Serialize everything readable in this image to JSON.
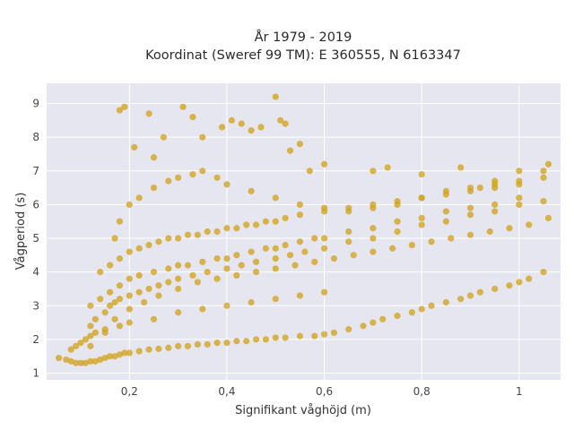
{
  "chart_data": {
    "type": "scatter",
    "title_lines": [
      "År 1979 - 2019",
      "Koordinat (Sweref 99 TM): E 360555, N 6163347"
    ],
    "xlabel": "Signifikant våghöjd (m)",
    "ylabel": "Vågperiod (s)",
    "xlim": [
      0.03,
      1.085
    ],
    "ylim": [
      0.8,
      9.6
    ],
    "x_ticks": [
      0.2,
      0.4,
      0.6,
      0.8,
      1.0
    ],
    "x_tick_labels": [
      "0,2",
      "0,4",
      "0,6",
      "0,8",
      "1"
    ],
    "y_ticks": [
      1,
      2,
      3,
      4,
      5,
      6,
      7,
      8,
      9
    ],
    "y_tick_labels": [
      "1",
      "2",
      "3",
      "4",
      "5",
      "6",
      "7",
      "8",
      "9"
    ],
    "grid": true,
    "plot_background": "#e5e6ef",
    "marker_color": "#d4a31e",
    "series": [
      {
        "x": [
          0.055,
          0.07,
          0.08,
          0.09,
          0.1,
          0.11,
          0.12,
          0.13,
          0.14,
          0.15,
          0.16,
          0.17,
          0.18,
          0.19,
          0.2,
          0.22,
          0.24,
          0.26,
          0.28,
          0.3,
          0.32,
          0.34,
          0.36,
          0.38,
          0.4,
          0.42,
          0.44,
          0.46,
          0.48,
          0.5,
          0.52,
          0.55,
          0.58,
          0.6,
          0.62,
          0.65,
          0.68,
          0.7,
          0.72,
          0.75,
          0.78,
          0.8,
          0.82,
          0.85,
          0.88,
          0.9,
          0.92,
          0.95,
          0.98,
          1.0,
          1.02,
          1.05,
          0.12,
          0.13,
          0.15,
          0.16,
          0.17,
          0.18,
          0.2,
          0.22,
          0.24,
          0.26,
          0.28,
          0.3,
          0.33,
          0.36,
          0.4,
          0.43,
          0.46,
          0.5,
          0.53,
          0.56,
          0.6,
          0.65,
          0.7,
          0.75,
          0.8,
          0.85,
          0.9,
          0.95,
          1.0,
          1.05,
          0.08,
          0.09,
          0.1,
          0.11,
          0.12,
          0.13,
          0.15,
          0.18,
          0.2,
          0.25,
          0.3,
          0.35,
          0.4,
          0.45,
          0.5,
          0.55,
          0.6,
          0.12,
          0.14,
          0.16,
          0.18,
          0.2,
          0.22,
          0.25,
          0.28,
          0.3,
          0.32,
          0.35,
          0.38,
          0.4,
          0.42,
          0.45,
          0.48,
          0.5,
          0.52,
          0.55,
          0.58,
          0.6,
          0.65,
          0.7,
          0.75,
          0.8,
          0.85,
          0.9,
          0.95,
          1.0,
          0.14,
          0.16,
          0.18,
          0.2,
          0.22,
          0.24,
          0.26,
          0.28,
          0.3,
          0.32,
          0.34,
          0.36,
          0.38,
          0.4,
          0.42,
          0.44,
          0.46,
          0.48,
          0.5,
          0.52,
          0.55,
          0.6,
          0.65,
          0.7,
          0.75,
          0.8,
          0.85,
          0.9,
          0.95,
          1.0,
          1.05,
          0.17,
          0.18,
          0.2,
          0.22,
          0.25,
          0.28,
          0.3,
          0.33,
          0.35,
          0.38,
          0.4,
          0.45,
          0.5,
          0.55,
          0.6,
          0.65,
          0.7,
          0.75,
          0.8,
          0.85,
          0.9,
          0.95,
          1.0,
          0.12,
          0.15,
          0.17,
          0.2,
          0.23,
          0.26,
          0.3,
          0.34,
          0.38,
          0.42,
          0.46,
          0.5,
          0.54,
          0.58,
          0.62,
          0.66,
          0.7,
          0.74,
          0.78,
          0.82,
          0.86,
          0.9,
          0.94,
          0.98,
          1.02,
          1.06,
          0.18,
          0.19,
          0.21,
          0.24,
          0.25,
          0.27,
          0.31,
          0.33,
          0.35,
          0.39,
          0.41,
          0.43,
          0.45,
          0.47,
          0.5,
          0.51,
          0.52,
          0.53,
          0.55,
          0.57,
          0.6,
          0.7,
          0.73,
          0.8,
          0.88,
          0.92,
          0.95,
          1.0,
          1.05,
          1.06
        ],
        "y": [
          1.45,
          1.4,
          1.35,
          1.3,
          1.3,
          1.3,
          1.35,
          1.35,
          1.4,
          1.45,
          1.5,
          1.5,
          1.55,
          1.6,
          1.6,
          1.65,
          1.7,
          1.72,
          1.75,
          1.8,
          1.8,
          1.85,
          1.85,
          1.9,
          1.9,
          1.95,
          1.95,
          2.0,
          2.0,
          2.05,
          2.05,
          2.1,
          2.1,
          2.15,
          2.2,
          2.3,
          2.4,
          2.5,
          2.6,
          2.7,
          2.8,
          2.9,
          3.0,
          3.1,
          3.2,
          3.3,
          3.4,
          3.5,
          3.6,
          3.7,
          3.8,
          4.0,
          2.4,
          2.6,
          2.8,
          3.0,
          3.1,
          3.2,
          3.3,
          3.4,
          3.5,
          3.6,
          3.7,
          3.8,
          3.9,
          4.0,
          4.1,
          4.2,
          4.3,
          4.4,
          4.5,
          4.6,
          4.7,
          4.9,
          5.0,
          5.2,
          5.4,
          5.5,
          5.7,
          5.8,
          6.0,
          6.1,
          1.7,
          1.8,
          1.9,
          2.0,
          2.1,
          2.2,
          2.3,
          2.4,
          2.5,
          2.6,
          2.8,
          2.9,
          3.0,
          3.1,
          3.2,
          3.3,
          3.4,
          3.0,
          3.2,
          3.4,
          3.6,
          3.8,
          3.9,
          4.0,
          4.1,
          4.2,
          4.2,
          4.3,
          4.4,
          4.4,
          4.5,
          4.6,
          4.7,
          4.7,
          4.8,
          4.9,
          5.0,
          5.0,
          5.2,
          5.3,
          5.5,
          5.6,
          5.8,
          5.9,
          6.0,
          6.2,
          4.0,
          4.2,
          4.4,
          4.6,
          4.7,
          4.8,
          4.9,
          5.0,
          5.0,
          5.1,
          5.1,
          5.2,
          5.2,
          5.3,
          5.3,
          5.4,
          5.4,
          5.5,
          5.5,
          5.6,
          5.7,
          5.8,
          5.9,
          6.0,
          6.1,
          6.2,
          6.3,
          6.4,
          6.5,
          6.6,
          6.8,
          5.0,
          5.5,
          6.0,
          6.2,
          6.5,
          6.7,
          6.8,
          6.9,
          7.0,
          6.8,
          6.6,
          6.4,
          6.2,
          6.0,
          5.9,
          5.8,
          5.9,
          6.0,
          6.2,
          6.4,
          6.5,
          6.6,
          6.7,
          1.8,
          2.2,
          2.6,
          2.9,
          3.1,
          3.3,
          3.5,
          3.7,
          3.8,
          3.9,
          4.0,
          4.1,
          4.2,
          4.3,
          4.4,
          4.5,
          4.6,
          4.7,
          4.8,
          4.9,
          5.0,
          5.1,
          5.2,
          5.3,
          5.4,
          5.6,
          8.8,
          8.9,
          7.7,
          8.7,
          7.4,
          8.0,
          8.9,
          8.6,
          8.0,
          8.3,
          8.5,
          8.4,
          8.2,
          8.3,
          9.2,
          8.5,
          8.4,
          7.6,
          7.8,
          7.0,
          7.2,
          7.0,
          7.1,
          6.9,
          7.1,
          6.5,
          6.7,
          7.0,
          7.0,
          7.2
        ]
      }
    ]
  }
}
